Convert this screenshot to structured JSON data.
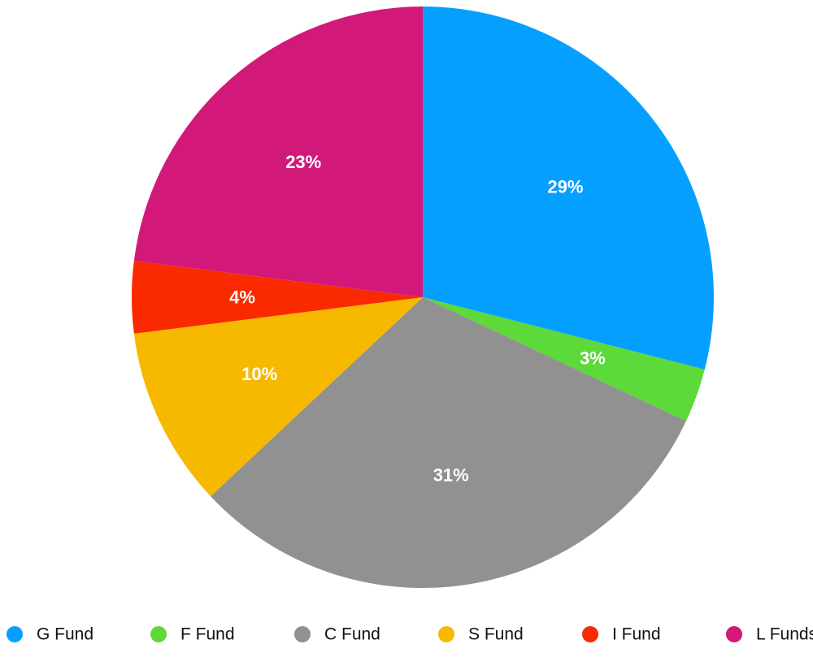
{
  "chart_data": {
    "type": "pie",
    "title": "",
    "start_angle": "12 o'clock, clockwise",
    "legend_position": "bottom",
    "show_percent_labels": true,
    "slices": [
      {
        "label": "G Fund",
        "value": 29,
        "display": "29%",
        "color": "#05A0FF"
      },
      {
        "label": "F Fund",
        "value": 3,
        "display": "3%",
        "color": "#5DD93A"
      },
      {
        "label": "C Fund",
        "value": 31,
        "display": "31%",
        "color": "#919191"
      },
      {
        "label": "S Fund",
        "value": 10,
        "display": "10%",
        "color": "#F7B900"
      },
      {
        "label": "I Fund",
        "value": 4,
        "display": "4%",
        "color": "#FA2A00"
      },
      {
        "label": "L Funds",
        "value": 23,
        "display": "23%",
        "color": "#D2197A"
      }
    ]
  }
}
